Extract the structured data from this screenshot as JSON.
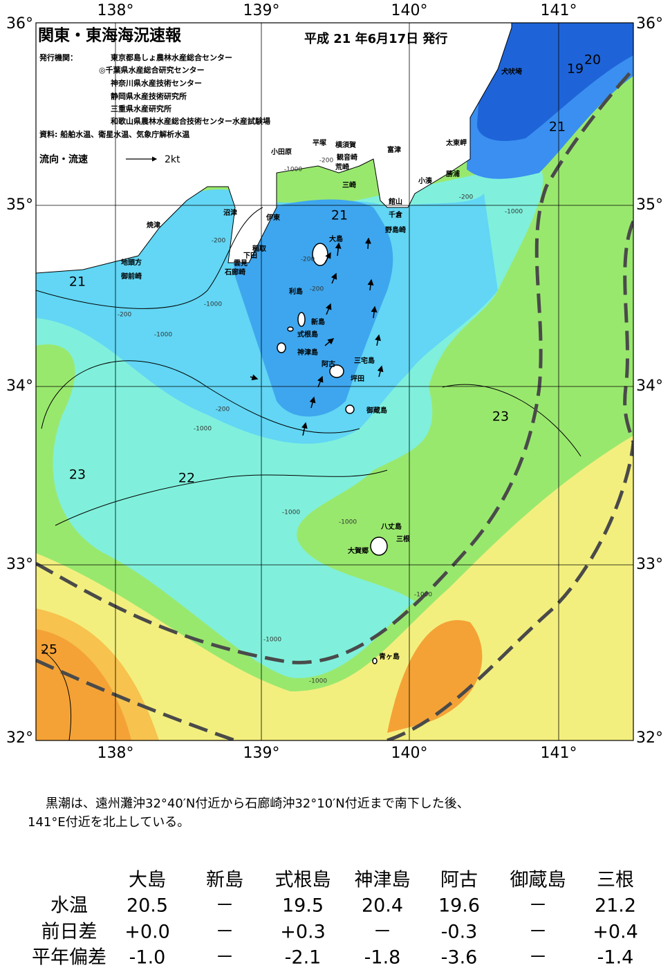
{
  "header": {
    "title": "関東・東海海況速報",
    "issue_date": "平成 21 年6月17日 発行",
    "agencies_label": "発行機関：",
    "agencies": [
      "東京都島しょ農林水産総合センター",
      "◎千葉県水産総合研究センター",
      "神奈川県水産技術センター",
      "静岡県水産技術研究所",
      "三重県水産研究所",
      "和歌山県農林水産総合技術センター水産試験場"
    ],
    "source": "資料: 船舶水温、衛星水温、気象庁解析水温",
    "current_label": "流向・流速",
    "current_scale": "2kt"
  },
  "map": {
    "lon_labels": [
      "138°",
      "139°",
      "140°",
      "141°"
    ],
    "lat_labels": [
      "36°",
      "35°",
      "34°",
      "33°",
      "32°"
    ],
    "place_names": [
      "犬吠埼",
      "太東岬",
      "勝浦",
      "小湊",
      "富津",
      "館山",
      "千倉",
      "野島崎",
      "横須賀",
      "観音崎",
      "荒崎",
      "三崎",
      "平塚",
      "小田原",
      "伊東",
      "沼津",
      "稲取",
      "下田",
      "雲見",
      "石廊崎",
      "焼津",
      "地頭方",
      "御前崎",
      "大島",
      "利島",
      "新島",
      "式根島",
      "神津島",
      "阿古",
      "三宅島",
      "坪田",
      "御蔵島",
      "八丈島",
      "三根",
      "大賀郷",
      "青ヶ島"
    ],
    "temperature_labels": [
      "21",
      "19",
      "20",
      "21",
      "21",
      "23",
      "22",
      "23",
      "25"
    ],
    "depth_labels": [
      "-1000",
      "-200",
      "-200",
      "-1000",
      "-200",
      "-1000",
      "-200",
      "-1000",
      "-200",
      "-1000",
      "-1000",
      "-1000",
      "-1000",
      "-1000",
      "-200",
      "-200",
      "-1000"
    ]
  },
  "description": [
    "黒潮は、遠州灘沖32°40′N付近から石廊崎沖32°10′N付近まで南下した後、",
    "141°E付近を北上している。"
  ],
  "table": {
    "header": [
      "大島",
      "新島",
      "式根島",
      "神津島",
      "阿古",
      "御蔵島",
      "三根"
    ],
    "rows": [
      [
        "水温",
        "20.5",
        "－",
        "19.5",
        "20.4",
        "19.6",
        "－",
        "21.2"
      ],
      [
        "前日差",
        "+0.0",
        "－",
        "+0.3",
        "－",
        "-0.3",
        "－",
        "+0.4"
      ],
      [
        "平年偏差",
        "-1.0",
        "－",
        "-2.1",
        "-1.8",
        "-3.6",
        "－",
        "-1.4"
      ]
    ]
  }
}
